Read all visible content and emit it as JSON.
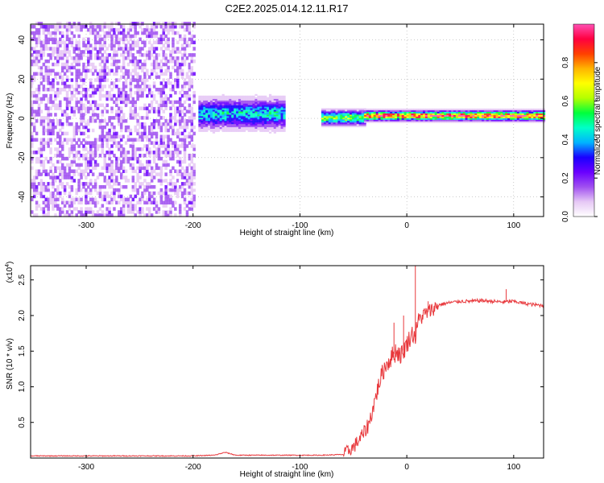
{
  "title": "C2E2.2025.014.12.11.R17",
  "chart_data": [
    {
      "type": "heatmap",
      "xlabel": "Height of straight line (km)",
      "ylabel": "Frequency (Hz)",
      "xlim": [
        -352,
        128
      ],
      "ylim": [
        -50,
        48
      ],
      "x_ticks": [
        -300,
        -200,
        -100,
        0,
        100
      ],
      "x_tick_labels": [
        "-300",
        "-200",
        "-100",
        "0",
        "100"
      ],
      "y_ticks": [
        -40,
        -20,
        0,
        20,
        40
      ],
      "y_tick_labels": [
        "-40",
        "-20",
        "0",
        "20",
        "40"
      ],
      "colorbar": {
        "label": "Normalized spectral amplitude",
        "range": [
          0,
          1
        ],
        "ticks": [
          0.0,
          0.2,
          0.4,
          0.6,
          0.8
        ],
        "tick_labels": [
          "0.0",
          "0.2",
          "0.4",
          "0.6",
          "0.8"
        ],
        "colormap": [
          "#ffffff",
          "#e6c8f5",
          "#a050f0",
          "#6a00ff",
          "#1a00ff",
          "#00b4ff",
          "#00ffc8",
          "#00ff3c",
          "#b4ff00",
          "#ffff00",
          "#ffb400",
          "#ff4000",
          "#ff0040",
          "#ff50b4"
        ]
      },
      "regions": [
        {
          "x": [
            -352,
            -200
          ],
          "freq": "all",
          "amplitude": 0.12,
          "description": "noise"
        },
        {
          "x": [
            -195,
            -115
          ],
          "freq_center": 2,
          "freq_halfwidth": 6,
          "amplitude": 0.45
        },
        {
          "x": [
            -80,
            -40
          ],
          "freq_center": 0,
          "freq_halfwidth": 3,
          "amplitude": 0.6
        },
        {
          "x": [
            -40,
            128
          ],
          "freq_center": 1,
          "freq_halfwidth": 2,
          "amplitude": 0.9
        }
      ],
      "grid": true
    },
    {
      "type": "line",
      "xlabel": "Height of straight line (km)",
      "ylabel": "SNR (10 * v/v)",
      "y_multiplier_label": "(x10",
      "y_multiplier_exp": "4",
      "y_multiplier_close": ")",
      "xlim": [
        -352,
        128
      ],
      "ylim": [
        0,
        2.7
      ],
      "x_ticks": [
        -300,
        -200,
        -100,
        0,
        100
      ],
      "x_tick_labels": [
        "-300",
        "-200",
        "-100",
        "0",
        "100"
      ],
      "y_ticks": [
        0.5,
        1.0,
        1.5,
        2.0,
        2.5
      ],
      "y_tick_labels": [
        "0.5",
        "1.0",
        "1.5",
        "2.0",
        "2.5"
      ],
      "series_color": "#e8383c",
      "x": [
        -352,
        -300,
        -250,
        -200,
        -180,
        -170,
        -160,
        -100,
        -80,
        -60,
        -55,
        -50,
        -45,
        -40,
        -35,
        -30,
        -25,
        -20,
        -15,
        -10,
        -5,
        0,
        5,
        8,
        10,
        12,
        15,
        20,
        25,
        30,
        40,
        50,
        60,
        70,
        80,
        90,
        100,
        110,
        120,
        128
      ],
      "y": [
        0.03,
        0.03,
        0.03,
        0.03,
        0.04,
        0.08,
        0.04,
        0.04,
        0.04,
        0.05,
        0.1,
        0.15,
        0.25,
        0.35,
        0.5,
        0.8,
        1.1,
        1.3,
        1.4,
        1.5,
        1.45,
        1.6,
        1.75,
        1.7,
        1.9,
        1.95,
        2.0,
        2.05,
        2.1,
        2.15,
        2.18,
        2.2,
        2.2,
        2.21,
        2.2,
        2.19,
        2.2,
        2.17,
        2.15,
        2.14
      ],
      "spikes": [
        {
          "x": -3,
          "y": 2.0
        },
        {
          "x": 8,
          "y": 2.7
        },
        {
          "x": -12,
          "y": 1.9
        },
        {
          "x": 20,
          "y": 2.2
        },
        {
          "x": 93,
          "y": 2.37
        }
      ],
      "grid": false
    }
  ]
}
